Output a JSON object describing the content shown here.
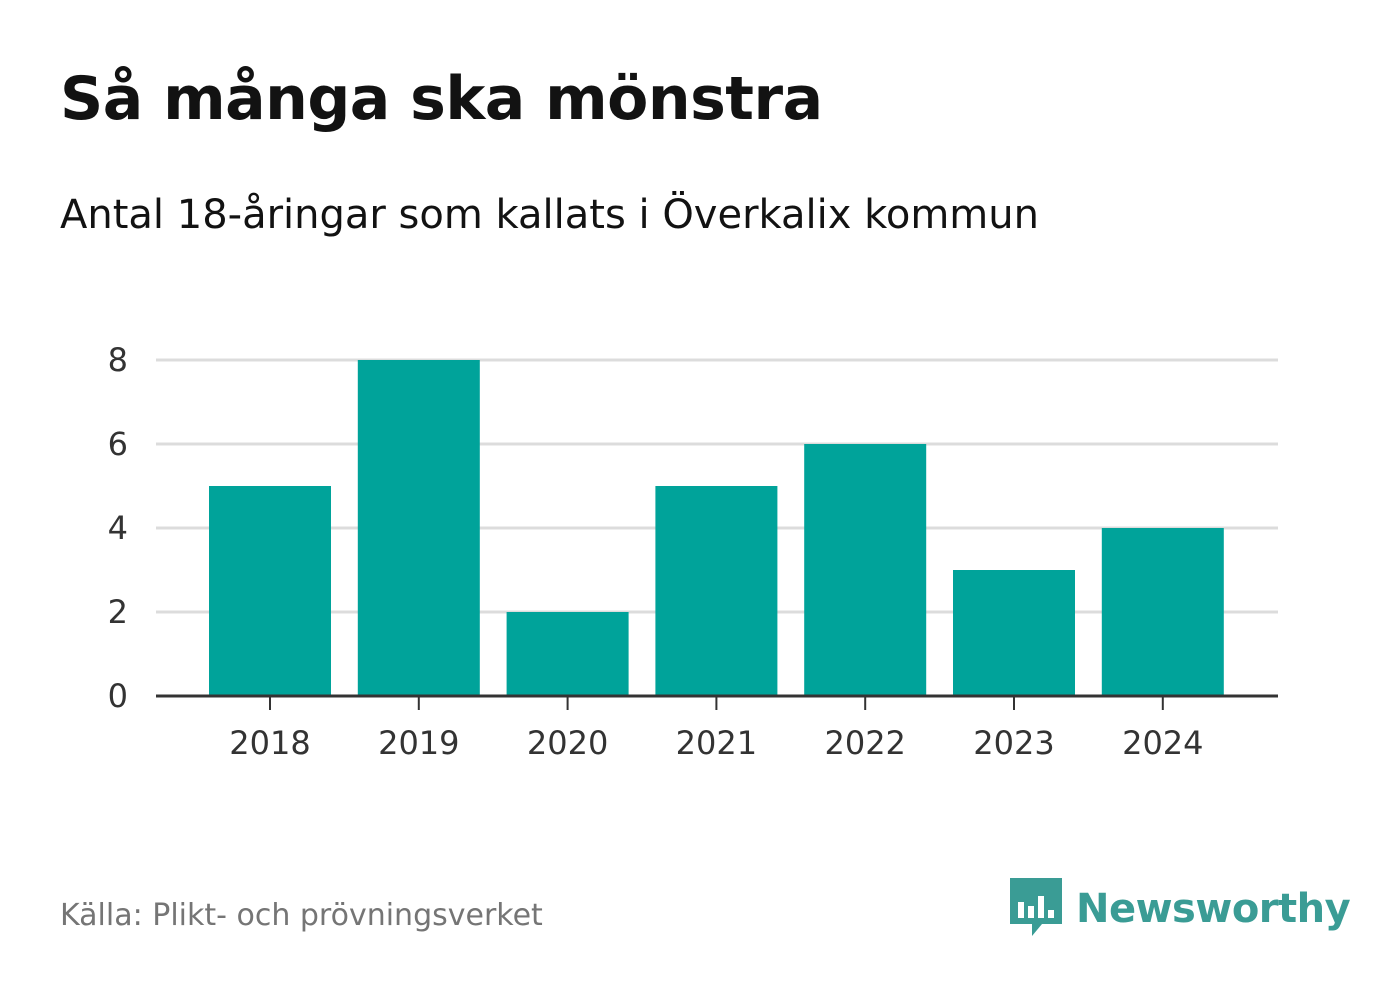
{
  "title": "Så många ska mönstra",
  "subtitle": "Antal 18-åringar som kallats i Överkalix kommun",
  "source": "Källa: Plikt- och prövningsverket",
  "brand": {
    "name": "Newsworthy",
    "icon": "newsworthy-logo-icon",
    "color": "#3a9c95"
  },
  "chart_data": {
    "type": "bar",
    "title": "",
    "xlabel": "",
    "ylabel": "",
    "categories": [
      "2018",
      "2019",
      "2020",
      "2021",
      "2022",
      "2023",
      "2024"
    ],
    "values": [
      5,
      8,
      2,
      5,
      6,
      3,
      4
    ],
    "ylim": [
      0,
      8
    ],
    "yticks": [
      0,
      2,
      4,
      6,
      8
    ],
    "grid": true,
    "legend": "none",
    "colors": {
      "bar": "#00a39a",
      "grid": "#dcdcdc",
      "axis": "#333333"
    }
  }
}
